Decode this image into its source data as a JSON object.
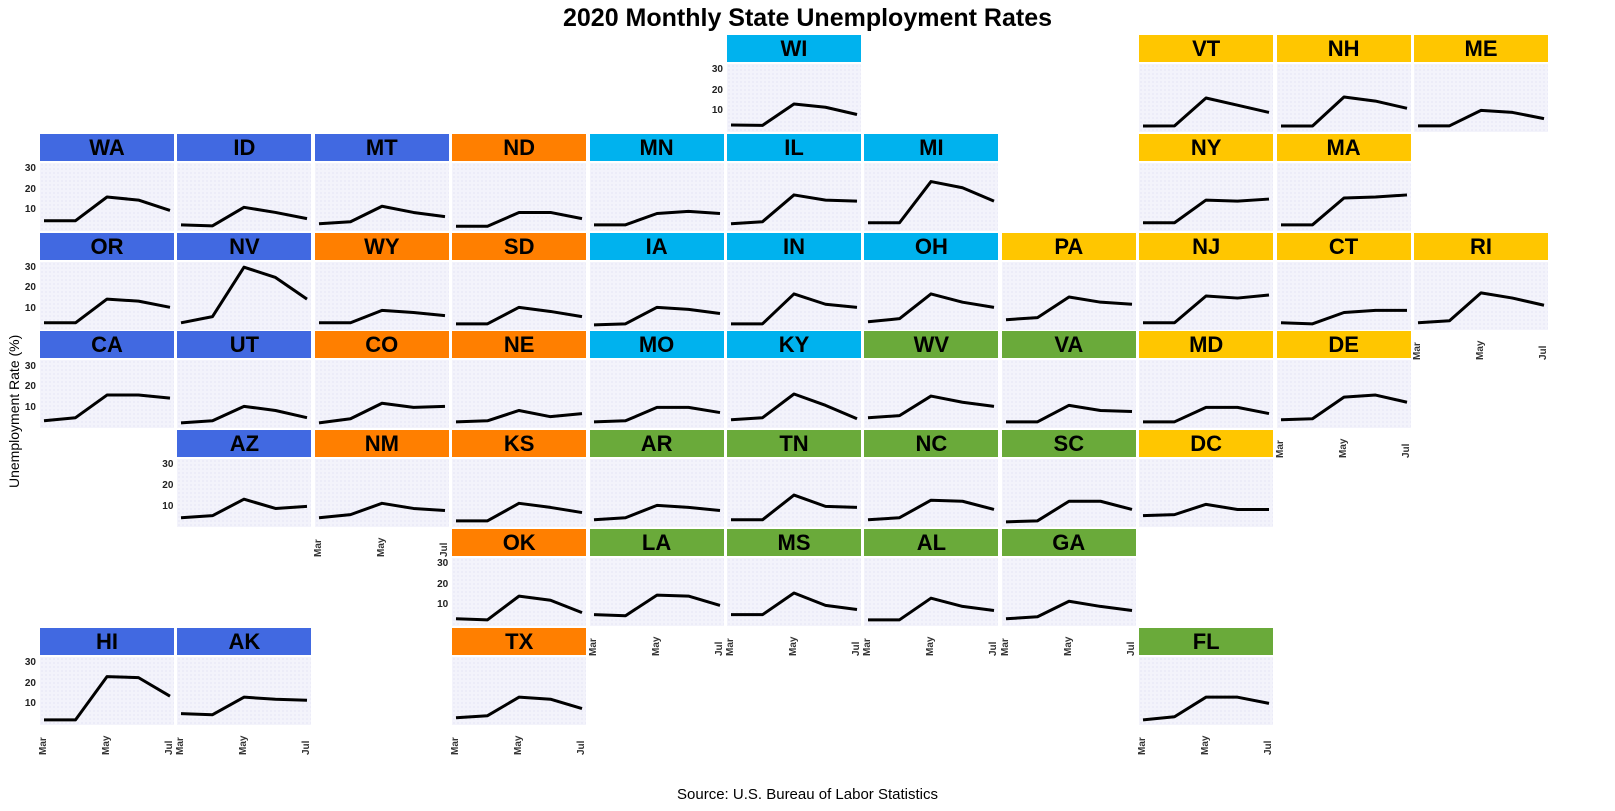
{
  "title": "2020 Monthly State Unemployment Rates",
  "ylabel": "Unemployment Rate (%)",
  "source": "Source: U.S. Bureau of Labor Statistics",
  "colors": {
    "West": "#4169e1",
    "Plains": "#ff7f00",
    "Midwest": "#00b2ee",
    "South": "#6aaa3a",
    "Northeast": "#ffc600",
    "line": "#000000"
  },
  "chart_data": {
    "type": "line",
    "x": [
      "Mar",
      "Apr",
      "May",
      "Jun",
      "Jul"
    ],
    "xticks": [
      "Mar",
      "May",
      "Jul"
    ],
    "yticks": [
      10,
      20,
      30
    ],
    "ylim": [
      0,
      33
    ],
    "panels": [
      {
        "state": "WI",
        "region": "Midwest",
        "row": 0,
        "col": 5,
        "values": [
          3.4,
          3.2,
          13.6,
          12.0,
          8.5
        ]
      },
      {
        "state": "VT",
        "region": "Northeast",
        "row": 0,
        "col": 8,
        "values": [
          2.9,
          3.0,
          16.5,
          13.0,
          9.5
        ]
      },
      {
        "state": "NH",
        "region": "Northeast",
        "row": 0,
        "col": 9,
        "values": [
          2.9,
          2.9,
          17.0,
          15.0,
          11.5
        ]
      },
      {
        "state": "ME",
        "region": "Northeast",
        "row": 0,
        "col": 10,
        "values": [
          3.0,
          3.0,
          10.5,
          9.5,
          6.5
        ]
      },
      {
        "state": "WA",
        "region": "West",
        "row": 1,
        "col": 0,
        "values": [
          5.0,
          5.0,
          16.5,
          15.0,
          10.0
        ]
      },
      {
        "state": "ID",
        "region": "West",
        "row": 1,
        "col": 1,
        "values": [
          3.0,
          2.5,
          11.5,
          9.0,
          6.0
        ]
      },
      {
        "state": "MT",
        "region": "West",
        "row": 1,
        "col": 2,
        "values": [
          3.5,
          4.5,
          12.0,
          9.0,
          7.0
        ]
      },
      {
        "state": "ND",
        "region": "Plains",
        "row": 1,
        "col": 3,
        "values": [
          2.3,
          2.3,
          9.0,
          9.0,
          6.0
        ]
      },
      {
        "state": "MN",
        "region": "Midwest",
        "row": 1,
        "col": 4,
        "values": [
          3.0,
          3.0,
          8.5,
          9.5,
          8.5
        ]
      },
      {
        "state": "IL",
        "region": "Midwest",
        "row": 1,
        "col": 5,
        "values": [
          3.5,
          4.5,
          17.5,
          15.0,
          14.5
        ]
      },
      {
        "state": "MI",
        "region": "Midwest",
        "row": 1,
        "col": 6,
        "values": [
          4.0,
          4.0,
          24.0,
          21.0,
          14.5
        ]
      },
      {
        "state": "NY",
        "region": "Northeast",
        "row": 1,
        "col": 8,
        "values": [
          4.0,
          4.0,
          15.0,
          14.5,
          15.5
        ]
      },
      {
        "state": "MA",
        "region": "Northeast",
        "row": 1,
        "col": 9,
        "values": [
          3.0,
          3.0,
          16.0,
          16.5,
          17.5
        ]
      },
      {
        "state": "OR",
        "region": "West",
        "row": 2,
        "col": 0,
        "values": [
          3.5,
          3.5,
          15.0,
          14.0,
          11.0
        ]
      },
      {
        "state": "NV",
        "region": "West",
        "row": 2,
        "col": 1,
        "values": [
          3.5,
          6.5,
          30.5,
          25.5,
          15.0
        ]
      },
      {
        "state": "WY",
        "region": "Plains",
        "row": 2,
        "col": 2,
        "values": [
          3.5,
          3.5,
          9.5,
          8.5,
          7.0
        ]
      },
      {
        "state": "SD",
        "region": "Plains",
        "row": 2,
        "col": 3,
        "values": [
          3.0,
          3.0,
          11.0,
          9.0,
          6.5
        ]
      },
      {
        "state": "IA",
        "region": "Midwest",
        "row": 2,
        "col": 4,
        "values": [
          2.5,
          3.0,
          11.0,
          10.0,
          8.0
        ]
      },
      {
        "state": "IN",
        "region": "Midwest",
        "row": 2,
        "col": 5,
        "values": [
          3.0,
          3.0,
          17.5,
          12.5,
          11.0
        ]
      },
      {
        "state": "OH",
        "region": "Midwest",
        "row": 2,
        "col": 6,
        "values": [
          4.0,
          5.5,
          17.5,
          13.5,
          11.0
        ]
      },
      {
        "state": "PA",
        "region": "Northeast",
        "row": 2,
        "col": 7,
        "values": [
          5.0,
          6.0,
          16.0,
          13.5,
          12.5
        ]
      },
      {
        "state": "NJ",
        "region": "Northeast",
        "row": 2,
        "col": 8,
        "values": [
          3.5,
          3.5,
          16.5,
          15.5,
          17.0
        ]
      },
      {
        "state": "CT",
        "region": "Northeast",
        "row": 2,
        "col": 9,
        "values": [
          3.5,
          3.0,
          8.5,
          9.5,
          9.5
        ]
      },
      {
        "state": "RI",
        "region": "Northeast",
        "row": 2,
        "col": 10,
        "values": [
          3.5,
          4.5,
          18.0,
          15.5,
          12.0
        ]
      },
      {
        "state": "CA",
        "region": "West",
        "row": 3,
        "col": 0,
        "values": [
          3.5,
          5.0,
          16.0,
          16.0,
          14.5
        ]
      },
      {
        "state": "UT",
        "region": "West",
        "row": 3,
        "col": 1,
        "values": [
          2.5,
          3.5,
          10.5,
          8.5,
          5.0
        ]
      },
      {
        "state": "CO",
        "region": "Plains",
        "row": 3,
        "col": 2,
        "values": [
          2.5,
          4.5,
          12.0,
          10.0,
          10.5
        ]
      },
      {
        "state": "NE",
        "region": "Plains",
        "row": 3,
        "col": 3,
        "values": [
          3.0,
          3.5,
          8.5,
          5.5,
          7.0
        ]
      },
      {
        "state": "MO",
        "region": "Midwest",
        "row": 3,
        "col": 4,
        "values": [
          3.0,
          3.5,
          10.0,
          10.0,
          7.5
        ]
      },
      {
        "state": "KY",
        "region": "Midwest",
        "row": 3,
        "col": 5,
        "values": [
          4.0,
          5.0,
          16.5,
          11.0,
          4.5
        ]
      },
      {
        "state": "WV",
        "region": "South",
        "row": 3,
        "col": 6,
        "values": [
          5.0,
          6.0,
          15.5,
          12.5,
          10.5
        ]
      },
      {
        "state": "VA",
        "region": "South",
        "row": 3,
        "col": 7,
        "values": [
          3.0,
          3.0,
          11.0,
          8.5,
          8.0
        ]
      },
      {
        "state": "MD",
        "region": "Northeast",
        "row": 3,
        "col": 8,
        "values": [
          3.0,
          3.0,
          10.0,
          10.0,
          7.0
        ]
      },
      {
        "state": "DE",
        "region": "Northeast",
        "row": 3,
        "col": 9,
        "values": [
          4.0,
          4.5,
          15.0,
          16.0,
          12.5
        ]
      },
      {
        "state": "AZ",
        "region": "West",
        "row": 4,
        "col": 1,
        "values": [
          4.5,
          5.5,
          13.5,
          9.0,
          10.0
        ]
      },
      {
        "state": "NM",
        "region": "Plains",
        "row": 4,
        "col": 2,
        "values": [
          4.5,
          6.0,
          11.5,
          9.0,
          8.0
        ]
      },
      {
        "state": "KS",
        "region": "Plains",
        "row": 4,
        "col": 3,
        "values": [
          3.0,
          3.0,
          11.5,
          9.5,
          7.0
        ]
      },
      {
        "state": "AR",
        "region": "South",
        "row": 4,
        "col": 4,
        "values": [
          3.5,
          4.5,
          10.5,
          9.5,
          8.0
        ]
      },
      {
        "state": "TN",
        "region": "South",
        "row": 4,
        "col": 5,
        "values": [
          3.5,
          3.5,
          15.5,
          10.0,
          9.5
        ]
      },
      {
        "state": "NC",
        "region": "South",
        "row": 4,
        "col": 6,
        "values": [
          3.5,
          4.5,
          13.0,
          12.5,
          8.5
        ]
      },
      {
        "state": "SC",
        "region": "South",
        "row": 4,
        "col": 7,
        "values": [
          2.5,
          3.0,
          12.5,
          12.5,
          8.5
        ]
      },
      {
        "state": "DC",
        "region": "Northeast",
        "row": 4,
        "col": 8,
        "values": [
          5.5,
          6.0,
          11.0,
          8.5,
          8.5
        ]
      },
      {
        "state": "OK",
        "region": "Plains",
        "row": 5,
        "col": 3,
        "values": [
          3.5,
          3.0,
          14.5,
          12.5,
          6.5
        ]
      },
      {
        "state": "LA",
        "region": "South",
        "row": 5,
        "col": 4,
        "values": [
          5.5,
          5.0,
          15.0,
          14.5,
          10.0
        ]
      },
      {
        "state": "MS",
        "region": "South",
        "row": 5,
        "col": 5,
        "values": [
          5.5,
          5.5,
          16.0,
          10.0,
          8.0
        ]
      },
      {
        "state": "AL",
        "region": "South",
        "row": 5,
        "col": 6,
        "values": [
          3.0,
          3.0,
          13.5,
          9.5,
          7.5
        ]
      },
      {
        "state": "GA",
        "region": "South",
        "row": 5,
        "col": 7,
        "values": [
          3.5,
          4.5,
          12.0,
          9.5,
          7.5
        ]
      },
      {
        "state": "HI",
        "region": "West",
        "row": 6,
        "col": 0,
        "values": [
          2.5,
          2.5,
          23.5,
          23.0,
          14.0
        ]
      },
      {
        "state": "AK",
        "region": "West",
        "row": 6,
        "col": 1,
        "values": [
          5.5,
          5.0,
          13.5,
          12.5,
          12.0
        ]
      },
      {
        "state": "TX",
        "region": "Plains",
        "row": 6,
        "col": 3,
        "values": [
          3.5,
          4.5,
          13.5,
          12.5,
          8.0
        ]
      },
      {
        "state": "FL",
        "region": "South",
        "row": 6,
        "col": 8,
        "values": [
          2.5,
          4.0,
          13.5,
          13.5,
          10.5
        ]
      }
    ],
    "yaxis_panels": [
      "WI",
      "WA",
      "OR",
      "CA",
      "AZ",
      "OK",
      "HI"
    ],
    "xaxis_panels": [
      "NM",
      "LA",
      "MS",
      "AL",
      "GA",
      "HI",
      "AK",
      "TX",
      "FL",
      "RI",
      "DE"
    ]
  }
}
